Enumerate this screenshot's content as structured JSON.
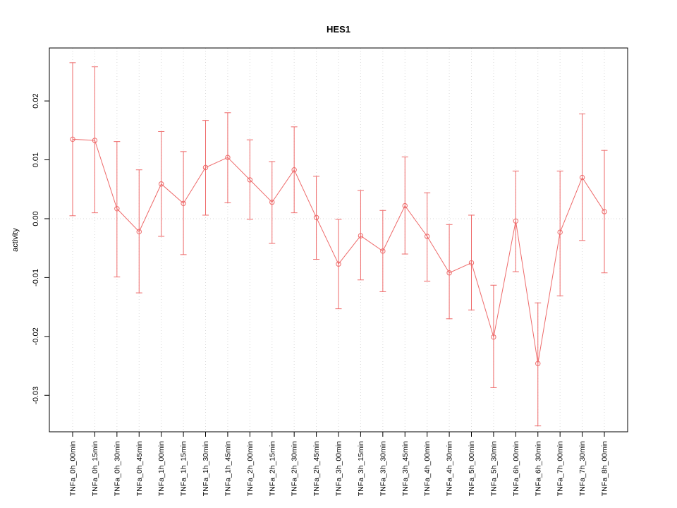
{
  "chart_data": {
    "type": "line",
    "title": "HES1",
    "xlabel": "",
    "ylabel": "activity",
    "categories": [
      "TNFa_0h_00min",
      "TNFa_0h_15min",
      "TNFa_0h_30min",
      "TNFa_0h_45min",
      "TNFa_1h_00min",
      "TNFa_1h_15min",
      "TNFa_1h_30min",
      "TNFa_1h_45min",
      "TNFa_2h_00min",
      "TNFa_2h_15min",
      "TNFa_2h_30min",
      "TNFa_2h_45min",
      "TNFa_3h_00min",
      "TNFa_3h_15min",
      "TNFa_3h_30min",
      "TNFa_3h_45min",
      "TNFa_4h_00min",
      "TNFa_4h_30min",
      "TNFa_5h_00min",
      "TNFa_5h_30min",
      "TNFa_6h_00min",
      "TNFa_6h_30min",
      "TNFa_7h_00min",
      "TNFa_7h_30min",
      "TNFa_8h_00min"
    ],
    "series": [
      {
        "name": "activity",
        "values": [
          0.0135,
          0.0133,
          0.0017,
          -0.0022,
          0.0059,
          0.0026,
          0.0087,
          0.0104,
          0.0066,
          0.0028,
          0.0083,
          0.0002,
          -0.0077,
          -0.0029,
          -0.0055,
          0.0022,
          -0.003,
          -0.0092,
          -0.0075,
          -0.0201,
          -0.0004,
          -0.0246,
          -0.0023,
          0.007,
          0.0012
        ],
        "error_low": [
          0.0005,
          0.001,
          -0.0099,
          -0.0126,
          -0.003,
          -0.0061,
          0.0006,
          0.0027,
          -0.0001,
          -0.0042,
          0.001,
          -0.0069,
          -0.0153,
          -0.0104,
          -0.0124,
          -0.006,
          -0.0106,
          -0.017,
          -0.0155,
          -0.0287,
          -0.009,
          -0.0352,
          -0.0131,
          -0.0037,
          -0.0092
        ],
        "error_high": [
          0.0265,
          0.0258,
          0.0131,
          0.0083,
          0.0148,
          0.0114,
          0.0167,
          0.018,
          0.0134,
          0.0097,
          0.0156,
          0.0072,
          -0.0001,
          0.0048,
          0.0014,
          0.0105,
          0.0044,
          -0.001,
          0.0006,
          -0.0113,
          0.0081,
          -0.0143,
          0.0081,
          0.0178,
          0.0116
        ]
      }
    ],
    "ylim": [
      -0.0362,
      0.029
    ],
    "ytick_values": [
      0.02,
      0.01,
      0.0,
      -0.01,
      -0.02,
      -0.03
    ],
    "ytick_labels": [
      "0.02",
      "0.01",
      "0.00",
      "-0.01",
      "-0.02",
      "-0.03"
    ],
    "grid": "vertical-dotted-gridlines-and-dotted-zero-line",
    "legend": "none",
    "colors": {
      "series": "#ee6a6a",
      "grid": "#d9d9d9",
      "zero_line": "#d9d9d9",
      "axis": "#000000",
      "background": "#ffffff"
    }
  }
}
